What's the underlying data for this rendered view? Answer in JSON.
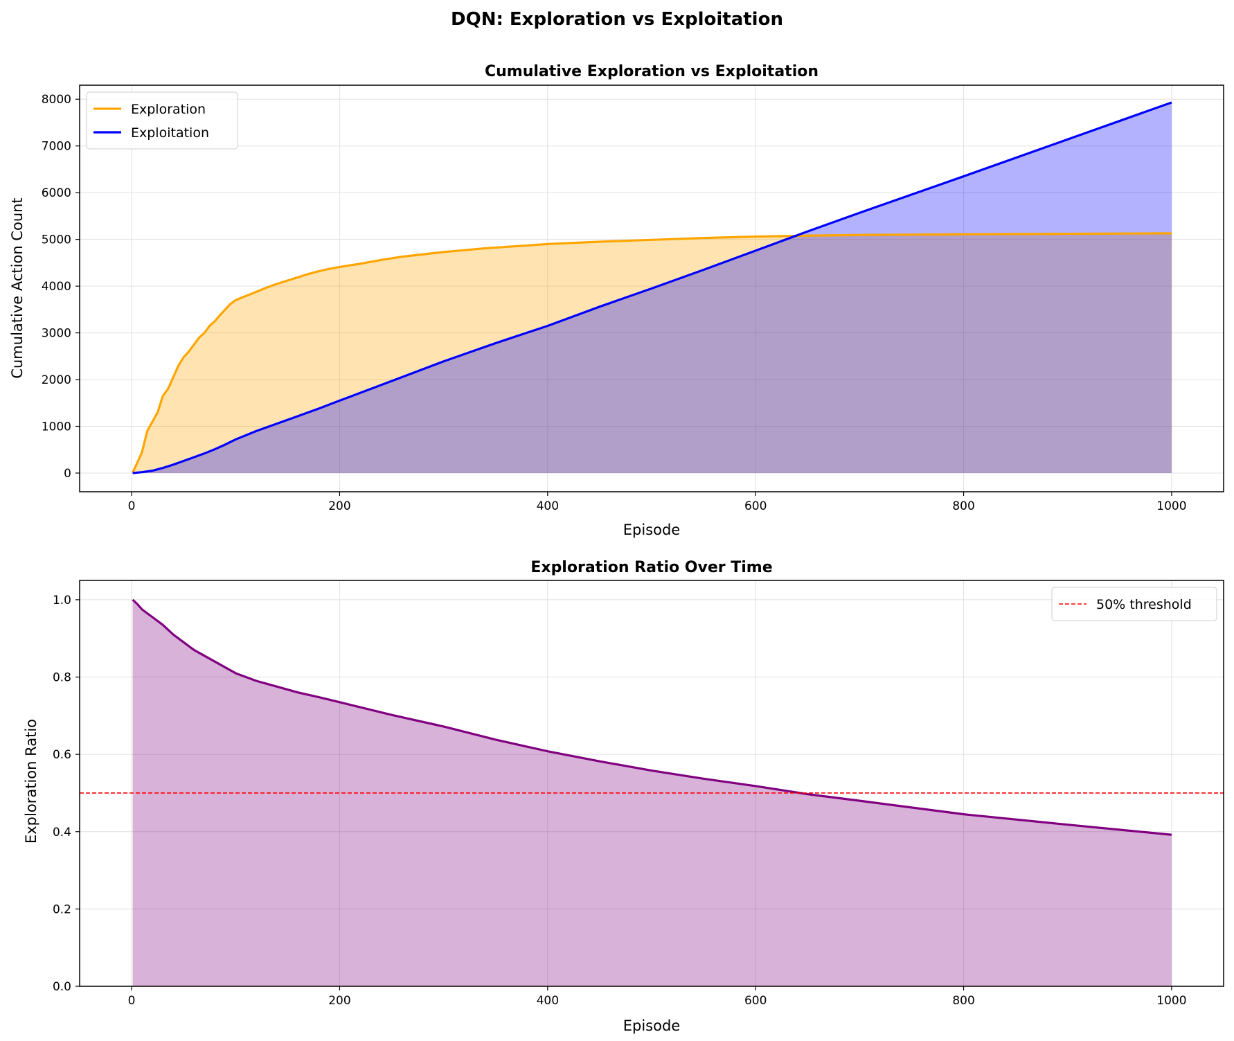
{
  "figure": {
    "title": "DQN: Exploration vs Exploitation"
  },
  "chart_data": [
    {
      "type": "area",
      "title": "Cumulative Exploration vs Exploitation",
      "xlabel": "Episode",
      "ylabel": "Cumulative Action Count",
      "xlim": [
        -50,
        1050
      ],
      "ylim": [
        -400,
        8300
      ],
      "xticks": [
        0,
        200,
        400,
        600,
        800,
        1000
      ],
      "yticks": [
        0,
        1000,
        2000,
        3000,
        4000,
        5000,
        6000,
        7000,
        8000
      ],
      "grid": true,
      "legend_position": "upper-left",
      "series": [
        {
          "name": "Exploration",
          "color": "#ffa500",
          "fill_color": "#ffa500",
          "x": [
            1,
            5,
            10,
            15,
            20,
            25,
            30,
            35,
            40,
            45,
            50,
            55,
            60,
            65,
            70,
            75,
            80,
            85,
            90,
            95,
            100,
            110,
            120,
            130,
            140,
            150,
            160,
            170,
            180,
            190,
            200,
            220,
            240,
            260,
            280,
            300,
            320,
            340,
            360,
            380,
            400,
            450,
            500,
            550,
            600,
            650,
            700,
            800,
            900,
            1000
          ],
          "values": [
            10,
            200,
            450,
            900,
            1100,
            1300,
            1650,
            1800,
            2050,
            2300,
            2480,
            2600,
            2750,
            2900,
            3000,
            3150,
            3250,
            3380,
            3500,
            3620,
            3700,
            3790,
            3880,
            3970,
            4050,
            4120,
            4190,
            4260,
            4320,
            4370,
            4410,
            4480,
            4560,
            4630,
            4680,
            4730,
            4770,
            4810,
            4840,
            4870,
            4900,
            4950,
            4990,
            5030,
            5060,
            5080,
            5095,
            5110,
            5120,
            5130
          ]
        },
        {
          "name": "Exploitation",
          "color": "#0000ff",
          "fill_color": "#0000ff",
          "x": [
            1,
            10,
            20,
            30,
            40,
            50,
            60,
            70,
            80,
            90,
            100,
            120,
            140,
            160,
            180,
            200,
            250,
            300,
            350,
            400,
            450,
            500,
            550,
            600,
            650,
            700,
            800,
            900,
            1000
          ],
          "values": [
            0,
            20,
            50,
            110,
            180,
            260,
            340,
            420,
            510,
            610,
            720,
            900,
            1060,
            1220,
            1380,
            1550,
            1970,
            2390,
            2780,
            3150,
            3560,
            3950,
            4350,
            4760,
            5170,
            5570,
            6350,
            7140,
            7930
          ]
        }
      ]
    },
    {
      "type": "area",
      "title": "Exploration Ratio Over Time",
      "xlabel": "Episode",
      "ylabel": "Exploration Ratio",
      "xlim": [
        -50,
        1050
      ],
      "ylim": [
        0.0,
        1.05
      ],
      "xticks": [
        0,
        200,
        400,
        600,
        800,
        1000
      ],
      "yticks": [
        "0.0",
        "0.2",
        "0.4",
        "0.6",
        "0.8",
        "1.0"
      ],
      "grid": true,
      "legend_position": "upper-right",
      "series": [
        {
          "name": "",
          "color": "#800080",
          "fill_color": "#800080",
          "x": [
            1,
            5,
            10,
            20,
            30,
            40,
            50,
            60,
            70,
            80,
            90,
            100,
            120,
            140,
            160,
            180,
            200,
            250,
            300,
            350,
            400,
            450,
            500,
            550,
            600,
            650,
            700,
            800,
            900,
            1000
          ],
          "values": [
            1.0,
            0.99,
            0.975,
            0.955,
            0.935,
            0.91,
            0.89,
            0.87,
            0.855,
            0.84,
            0.825,
            0.81,
            0.79,
            0.775,
            0.76,
            0.748,
            0.735,
            0.702,
            0.672,
            0.638,
            0.608,
            0.582,
            0.558,
            0.537,
            0.518,
            0.497,
            0.48,
            0.445,
            0.418,
            0.392
          ]
        }
      ],
      "reference_lines": [
        {
          "name": "50% threshold",
          "y": 0.5,
          "color": "#ff0000",
          "style": "dashed"
        }
      ]
    }
  ]
}
